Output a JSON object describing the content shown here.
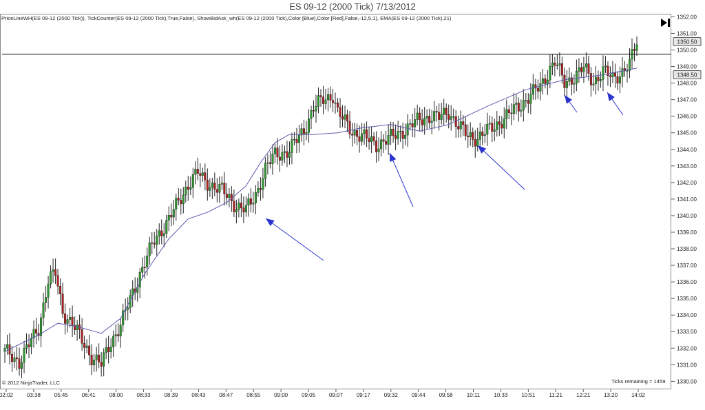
{
  "title": "ES 09-12 (2000 Tick)  7/13/2012",
  "indicators_line": "PriceLineWH(ES 09-12 (2000 Tick)), TickCounter(ES 09-12 (2000 Tick),True,False), ShowBidAsk_wh(ES 09-12 (2000 Tick),Color [Blue],Color [Red],False,-12,5,1), EMA(ES 09-12 (2000 Tick),21)",
  "copyright": "© 2012 NinjaTrader, LLC",
  "ticks_remaining": "Ticks remaining = 1459",
  "icons": {
    "skip_to_end": "skip-to-end-icon"
  },
  "colors": {
    "bullish": "#2e9a2e",
    "bearish": "#b02020",
    "ema": "#5b5bb0",
    "arrow": "#2a33cc",
    "price_line": "#000000"
  },
  "chart_data": {
    "type": "candlestick",
    "title": "ES 09-12 (2000 Tick)  7/13/2012",
    "y_ticks": [
      1330,
      1331,
      1332,
      1333,
      1334,
      1335,
      1336,
      1337,
      1338,
      1339,
      1340,
      1341,
      1342,
      1343,
      1344,
      1345,
      1346,
      1347,
      1348,
      1349,
      1350,
      1351,
      1352
    ],
    "y_tick_labels": [
      "1330.00",
      "1331.00",
      "1332.00",
      "1333.00",
      "1334.00",
      "1335.00",
      "1336.00",
      "1337.00",
      "1338.00",
      "1339.00",
      "1340.00",
      "1341.00",
      "1342.00",
      "1343.00",
      "1344.00",
      "1345.00",
      "1346.00",
      "1347.00",
      "1348.00",
      "1349.00",
      "1350.00",
      "1351.00",
      "1352.00"
    ],
    "ylim": [
      1329.6,
      1352.1
    ],
    "x_tick_labels": [
      "02:02",
      "03:38",
      "05:45",
      "06:41",
      "08:00",
      "08:33",
      "08:39",
      "08:43",
      "08:47",
      "08:55",
      "09:00",
      "09:05",
      "09:07",
      "09:17",
      "09:32",
      "09:44",
      "09:58",
      "10:11",
      "10:33",
      "10:51",
      "11:21",
      "12:21",
      "13:20",
      "14:02"
    ],
    "price_line": 1349.75,
    "price_labels": [
      "1350.50",
      "1348.50"
    ],
    "price_label_values": [
      1350.5,
      1348.5
    ],
    "series": [
      {
        "name": "EMA(ES 09-12 (2000 Tick),21)",
        "type": "line",
        "anchors": [
          [
            0,
            1331.8
          ],
          [
            14,
            1332.8
          ],
          [
            22,
            1333.5
          ],
          [
            30,
            1333.3
          ],
          [
            40,
            1332.9
          ],
          [
            48,
            1333.8
          ],
          [
            58,
            1336.5
          ],
          [
            68,
            1338.6
          ],
          [
            76,
            1339.8
          ],
          [
            84,
            1340.2
          ],
          [
            92,
            1340.8
          ],
          [
            100,
            1341.8
          ],
          [
            106,
            1343.2
          ],
          [
            112,
            1344.4
          ],
          [
            118,
            1344.9
          ],
          [
            128,
            1344.9
          ],
          [
            138,
            1345.0
          ],
          [
            148,
            1345.3
          ],
          [
            160,
            1345.5
          ],
          [
            172,
            1345.1
          ],
          [
            184,
            1345.5
          ],
          [
            200,
            1346.6
          ],
          [
            216,
            1347.6
          ],
          [
            232,
            1348.2
          ],
          [
            248,
            1348.5
          ],
          [
            262,
            1348.9
          ]
        ]
      },
      {
        "name": "candles",
        "type": "ohlc",
        "count": 263,
        "anchors": [
          [
            0,
            1331.8
          ],
          [
            6,
            1331.2
          ],
          [
            14,
            1333.2
          ],
          [
            18,
            1336.1
          ],
          [
            21,
            1336.5
          ],
          [
            24,
            1334.2
          ],
          [
            28,
            1333.5
          ],
          [
            33,
            1332.2
          ],
          [
            36,
            1331.5
          ],
          [
            40,
            1331.0
          ],
          [
            44,
            1332.4
          ],
          [
            48,
            1333.4
          ],
          [
            56,
            1336.5
          ],
          [
            62,
            1338.5
          ],
          [
            68,
            1339.8
          ],
          [
            72,
            1340.8
          ],
          [
            76,
            1341.9
          ],
          [
            80,
            1342.6
          ],
          [
            82,
            1342.2
          ],
          [
            84,
            1342.0
          ],
          [
            90,
            1341.5
          ],
          [
            96,
            1340.6
          ],
          [
            100,
            1340.3
          ],
          [
            104,
            1341.3
          ],
          [
            108,
            1342.8
          ],
          [
            112,
            1343.7
          ],
          [
            118,
            1343.9
          ],
          [
            124,
            1345.2
          ],
          [
            128,
            1346.5
          ],
          [
            132,
            1347.0
          ],
          [
            136,
            1347.3
          ],
          [
            138,
            1346.2
          ],
          [
            144,
            1345.1
          ],
          [
            148,
            1344.8
          ],
          [
            154,
            1344.3
          ],
          [
            160,
            1344.7
          ],
          [
            166,
            1345.2
          ],
          [
            172,
            1345.8
          ],
          [
            176,
            1346.0
          ],
          [
            180,
            1345.9
          ],
          [
            184,
            1346.3
          ],
          [
            188,
            1345.4
          ],
          [
            192,
            1344.8
          ],
          [
            196,
            1344.7
          ],
          [
            202,
            1345.3
          ],
          [
            208,
            1346.0
          ],
          [
            216,
            1347.0
          ],
          [
            222,
            1347.8
          ],
          [
            226,
            1348.9
          ],
          [
            228,
            1349.3
          ],
          [
            232,
            1348.0
          ],
          [
            236,
            1348.4
          ],
          [
            240,
            1348.9
          ],
          [
            244,
            1348.1
          ],
          [
            248,
            1348.7
          ],
          [
            252,
            1348.3
          ],
          [
            256,
            1348.7
          ],
          [
            259,
            1349.1
          ],
          [
            262,
            1350.5
          ]
        ]
      }
    ],
    "annotations": [
      {
        "type": "arrow",
        "from": [
          470,
          378
        ],
        "to": [
          386,
          317
        ]
      },
      {
        "type": "arrow",
        "from": [
          600,
          300
        ],
        "to": [
          566,
          222
        ]
      },
      {
        "type": "arrow",
        "from": [
          762,
          275
        ],
        "to": [
          694,
          211
        ]
      },
      {
        "type": "arrow",
        "from": [
          838,
          163
        ],
        "to": [
          820,
          138
        ]
      },
      {
        "type": "arrow",
        "from": [
          905,
          167
        ],
        "to": [
          882,
          134
        ]
      }
    ]
  }
}
